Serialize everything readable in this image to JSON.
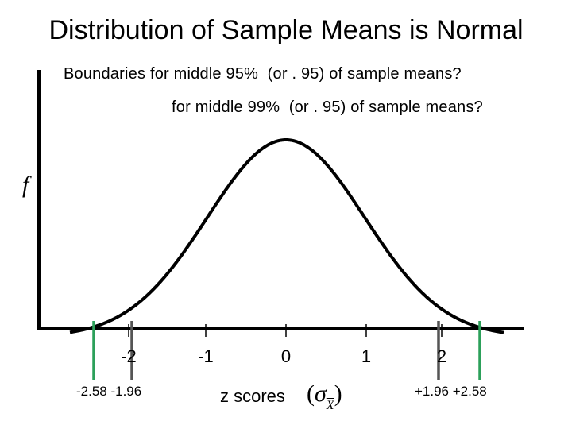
{
  "title": "Distribution of Sample Means is Normal",
  "question_95": "Boundaries for middle 95%  (or . 95) of sample means?",
  "question_99": "for middle 99%  (or . 95) of sample means?",
  "y_axis_label": "f",
  "x_axis_label": "z scores",
  "sigma_label": {
    "open": "(",
    "symbol": "σ",
    "subscript": "X",
    "close": ")"
  },
  "tick_labels": {
    "m2": "-2",
    "m1": "-1",
    "zero": "0",
    "p1": "1",
    "p2": "2"
  },
  "critical_labels": {
    "left": "-2.58 -1.96",
    "right": "+1.96 +2.58"
  },
  "critical_values": [
    -2.58,
    -1.96,
    1.96,
    2.58
  ],
  "colors": {
    "curve": "#000000",
    "marker_99": "#2ca05a",
    "marker_95": "#555555"
  }
}
